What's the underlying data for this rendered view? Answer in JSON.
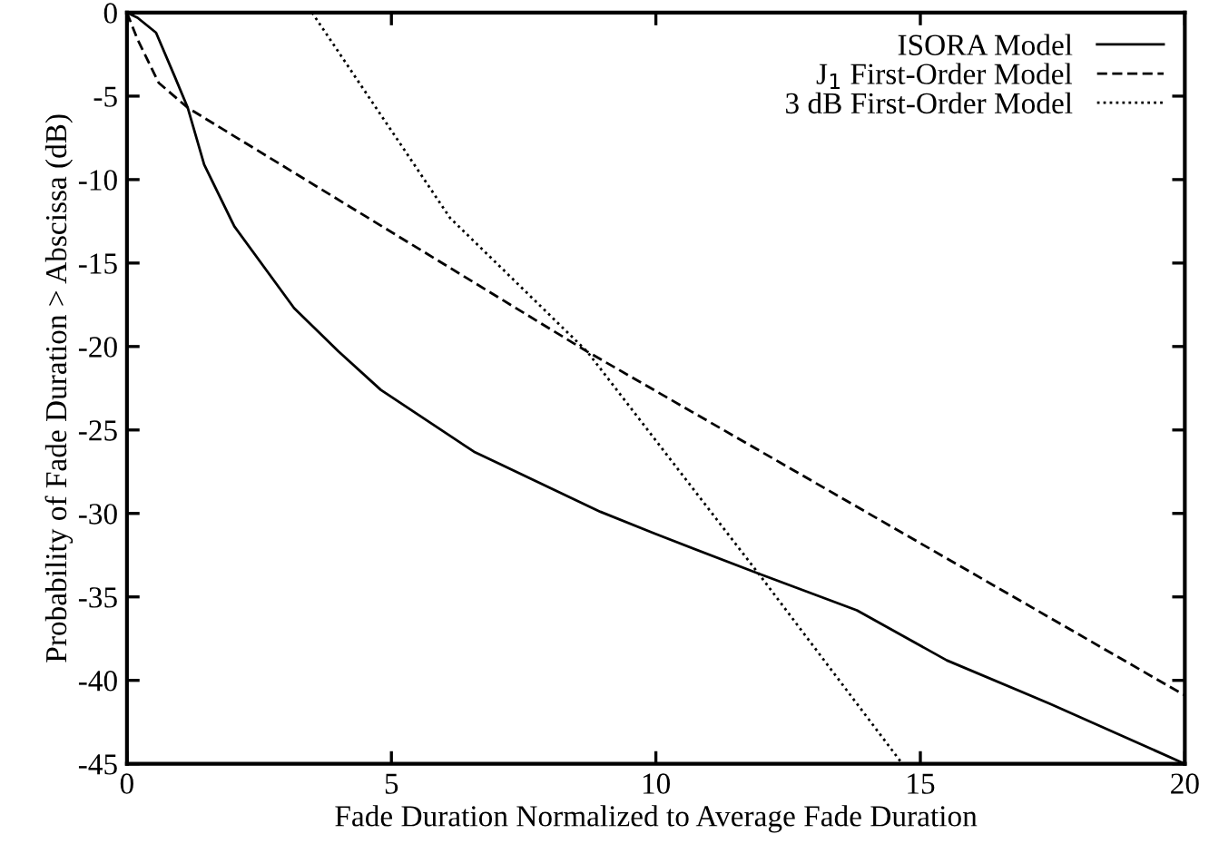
{
  "chart_data": {
    "type": "line",
    "xlabel": "Fade Duration Normalized to Average Fade Duration",
    "ylabel": "Probability of Fade Duration > Abscissa (dB)",
    "xlim": [
      0,
      20
    ],
    "xticks": [
      0,
      5,
      10,
      15,
      20
    ],
    "ylim": [
      -45,
      0
    ],
    "yticks": [
      0,
      -5,
      -10,
      -15,
      -20,
      -25,
      -30,
      -35,
      -40,
      -45
    ],
    "grid": false,
    "legend": "top right",
    "marker": "none",
    "series": [
      {
        "name": "ISORA Model",
        "color": "#000000",
        "line_style": "solid",
        "x": [
          0,
          0.2,
          0.55,
          0.9,
          1.15,
          1.46,
          2.03,
          3.16,
          4.0,
          4.8,
          6.56,
          8.95,
          9.97,
          11.94,
          13.8,
          15.5,
          17.45,
          20
        ],
        "values": [
          0,
          -0.3,
          -1.2,
          -3.8,
          -5.7,
          -9.1,
          -12.8,
          -17.7,
          -20.3,
          -22.6,
          -26.3,
          -29.9,
          -31.2,
          -33.6,
          -35.8,
          -38.8,
          -41.4,
          -45
        ]
      },
      {
        "name": "J$_{1}$ First-Order Model",
        "color": "#000000",
        "line_style": "dashed",
        "x": [
          0,
          0.2,
          0.6,
          1.15,
          8.7,
          20
        ],
        "values": [
          0,
          -1.6,
          -4.2,
          -5.7,
          -20.3,
          -40.9
        ]
      },
      {
        "name": "3 dB First-Order Model",
        "color": "#000000",
        "line_style": "dotted",
        "x": [
          3.5,
          6.11,
          8.7,
          11.94,
          14.66
        ],
        "values": [
          0,
          -12.3,
          -20.3,
          -33.6,
          -45
        ]
      }
    ]
  }
}
